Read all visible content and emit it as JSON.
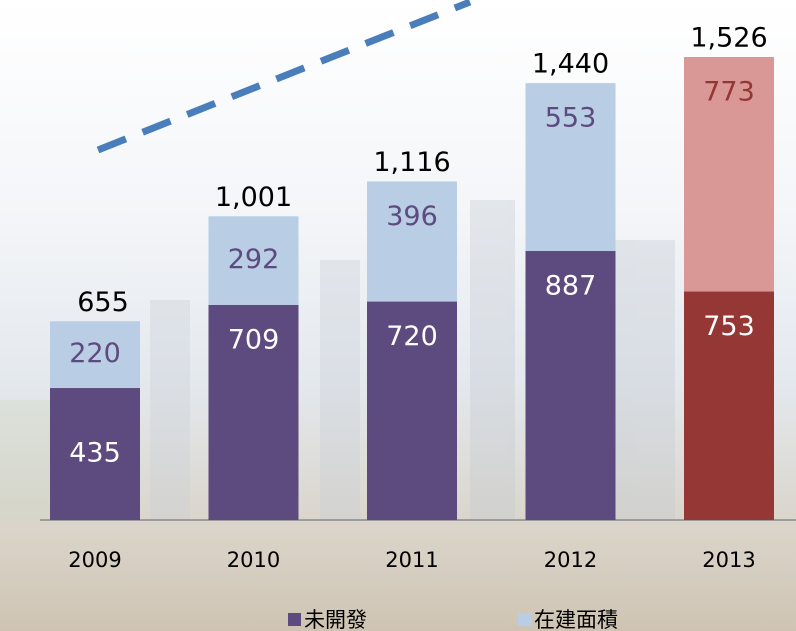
{
  "chart_data": {
    "type": "stacked-bar",
    "categories": [
      "2009",
      "2010",
      "2011",
      "2012",
      "2013"
    ],
    "series": [
      {
        "name": "未開發",
        "color": "#5d4a7e",
        "colors": [
          "#5d4a7e",
          "#5d4a7e",
          "#5d4a7e",
          "#5d4a7e",
          "#953735"
        ],
        "label_color": "#ffffff",
        "values": [
          435,
          709,
          720,
          887,
          753
        ]
      },
      {
        "name": "在建面積",
        "color": "#b9cde5",
        "colors": [
          "#b9cde5",
          "#b9cde5",
          "#b9cde5",
          "#b9cde5",
          "#d99795"
        ],
        "label_color": "#5d4a7e",
        "values": [
          220,
          292,
          396,
          553,
          773
        ]
      }
    ],
    "totals": [
      655,
      1001,
      1116,
      1440,
      1526
    ],
    "total_labels": [
      "655",
      "1,001",
      "1,116",
      "1,440",
      "1,526"
    ]
  }
}
